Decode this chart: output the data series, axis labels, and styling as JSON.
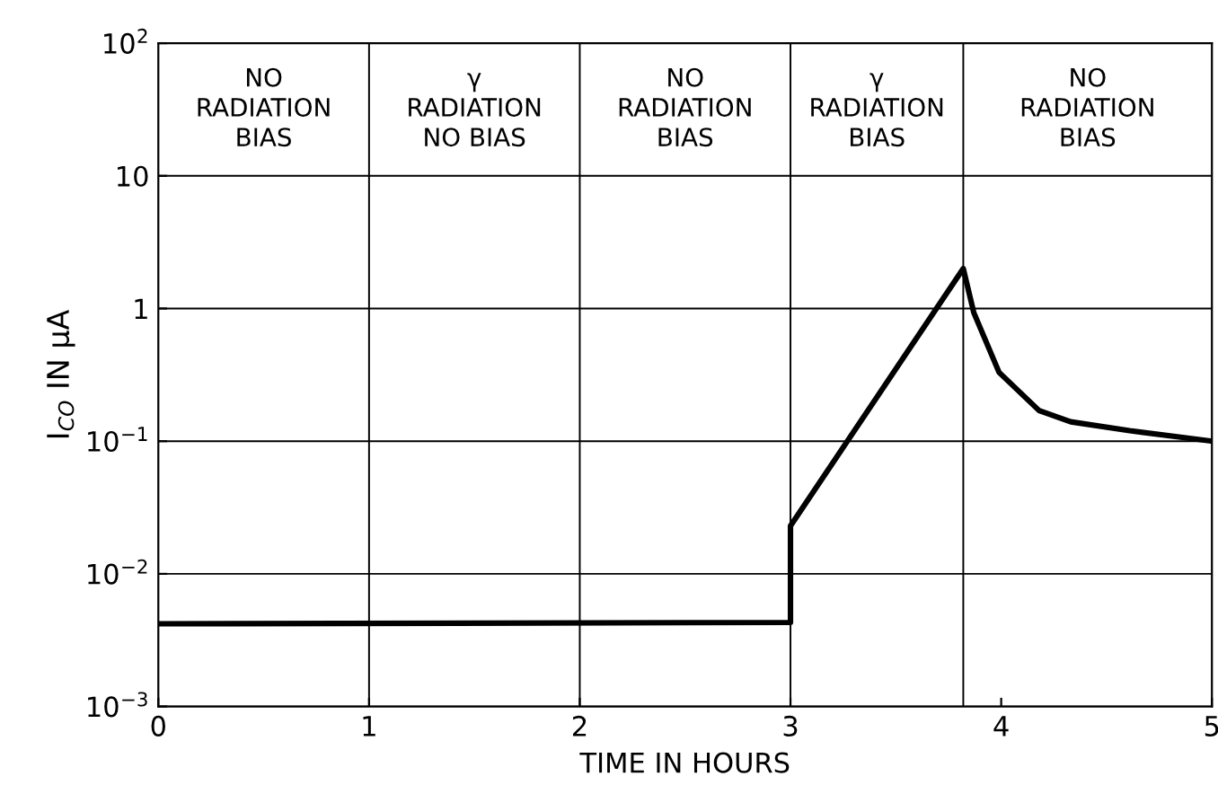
{
  "chart_data": {
    "type": "line",
    "xlabel": "TIME IN HOURS",
    "ylabel": "I$_{CO}$ IN μA",
    "x": [
      0,
      3,
      3,
      3.82,
      3.87,
      3.99,
      4.18,
      4.33,
      4.61,
      5
    ],
    "series": [
      {
        "color": "#000000",
        "values": [
          0.0042,
          0.0043,
          0.023,
          2.0,
          0.93,
          0.33,
          0.17,
          0.14,
          0.12,
          0.1
        ]
      }
    ],
    "log": "y",
    "xlim": [
      0,
      5
    ],
    "xticks": [
      0,
      1,
      2,
      3,
      4,
      5
    ],
    "ylim": [
      0.001,
      100
    ],
    "yticks": [
      {
        "value": 0.001,
        "label": "10$^{−3}$"
      },
      {
        "value": 0.01,
        "label": "10$^{−2}$"
      },
      {
        "value": 0.1,
        "label": "10$^{−1}$"
      },
      1,
      10,
      {
        "value": 100,
        "label": "10$^{2}$"
      }
    ],
    "grid": "y",
    "marker": "none",
    "line_style": "solid",
    "legend": false,
    "ref_lines": [
      {
        "axis": "x",
        "value": 1
      },
      {
        "axis": "x",
        "value": 2
      },
      {
        "axis": "x",
        "value": 3
      },
      {
        "axis": "x",
        "value": 3.82
      }
    ],
    "annotations": [
      "NO\nRADIATION\nBIAS",
      "γ\nRADIATION\nNO BIAS",
      "NO\nRADIATION\nBIAS",
      "γ\nRADIATION\nBIAS",
      "NO\nRADIATION\nBIAS"
    ]
  }
}
